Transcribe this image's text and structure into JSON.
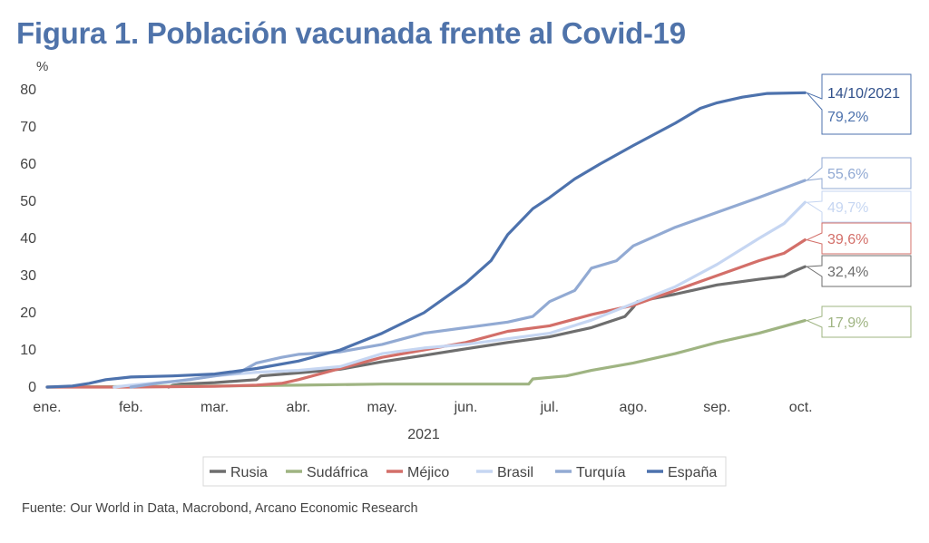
{
  "title": "Figura 1. Población vacunada frente al Covid-19",
  "source": "Fuente: Our World in Data, Macrobond, Arcano Economic Research",
  "chart_data": {
    "type": "line",
    "title": "Figura 1. Población vacunada frente al Covid-19",
    "ylabel": "%",
    "xlabel": "2021",
    "ylim": [
      0,
      80
    ],
    "yticks": [
      0,
      10,
      20,
      30,
      40,
      50,
      60,
      70,
      80
    ],
    "xlim": [
      0,
      9.3
    ],
    "xticks": [
      {
        "x": 0,
        "label": "ene."
      },
      {
        "x": 1,
        "label": "feb."
      },
      {
        "x": 2,
        "label": "mar."
      },
      {
        "x": 3,
        "label": "abr."
      },
      {
        "x": 4,
        "label": "may."
      },
      {
        "x": 5,
        "label": "jun."
      },
      {
        "x": 6,
        "label": "jul."
      },
      {
        "x": 7,
        "label": "ago."
      },
      {
        "x": 8,
        "label": "sep."
      },
      {
        "x": 9,
        "label": "oct."
      }
    ],
    "grid": false,
    "legend_position": "bottom",
    "callout_date": "14/10/2021",
    "series": [
      {
        "name": "Rusia",
        "color": "#6e6e6e",
        "end_label": "32,4%",
        "points": [
          [
            1.45,
            0.0
          ],
          [
            1.5,
            0.5
          ],
          [
            1.6,
            0.8
          ],
          [
            2.0,
            1.2
          ],
          [
            2.5,
            2.0
          ],
          [
            2.55,
            3.0
          ],
          [
            3.0,
            3.8
          ],
          [
            3.5,
            4.8
          ],
          [
            4.0,
            6.8
          ],
          [
            4.5,
            8.5
          ],
          [
            5.0,
            10.3
          ],
          [
            5.5,
            12.0
          ],
          [
            6.0,
            13.5
          ],
          [
            6.5,
            16.0
          ],
          [
            6.9,
            19.0
          ],
          [
            7.0,
            21.5
          ],
          [
            7.05,
            23.0
          ],
          [
            7.5,
            25.0
          ],
          [
            8.0,
            27.5
          ],
          [
            8.5,
            29.0
          ],
          [
            8.8,
            29.8
          ],
          [
            8.9,
            31.0
          ],
          [
            9.05,
            32.4
          ]
        ]
      },
      {
        "name": "Sudáfrica",
        "color": "#9fb482",
        "end_label": "17,9%",
        "points": [
          [
            0,
            0.0
          ],
          [
            2.0,
            0.3
          ],
          [
            3.0,
            0.5
          ],
          [
            4.0,
            0.8
          ],
          [
            5.0,
            0.8
          ],
          [
            5.75,
            0.8
          ],
          [
            5.8,
            2.2
          ],
          [
            6.2,
            3.0
          ],
          [
            6.5,
            4.5
          ],
          [
            7.0,
            6.5
          ],
          [
            7.5,
            9.0
          ],
          [
            8.0,
            12.0
          ],
          [
            8.5,
            14.5
          ],
          [
            9.05,
            17.9
          ]
        ]
      },
      {
        "name": "Méjico",
        "color": "#d36f69",
        "end_label": "39,6%",
        "points": [
          [
            0,
            0.0
          ],
          [
            1.0,
            0.0
          ],
          [
            2.0,
            0.2
          ],
          [
            2.5,
            0.5
          ],
          [
            2.8,
            1.0
          ],
          [
            3.0,
            2.0
          ],
          [
            3.5,
            5.0
          ],
          [
            4.0,
            8.0
          ],
          [
            4.5,
            10.0
          ],
          [
            5.0,
            12.0
          ],
          [
            5.5,
            15.0
          ],
          [
            6.0,
            16.5
          ],
          [
            6.5,
            19.5
          ],
          [
            7.0,
            22.0
          ],
          [
            7.5,
            26.0
          ],
          [
            8.0,
            30.0
          ],
          [
            8.5,
            34.0
          ],
          [
            8.8,
            36.0
          ],
          [
            9.05,
            39.6
          ]
        ]
      },
      {
        "name": "Brasil",
        "color": "#c6d6f2",
        "end_label": "49,7%",
        "points": [
          [
            0.8,
            0.0
          ],
          [
            1.0,
            0.5
          ],
          [
            1.5,
            1.5
          ],
          [
            2.0,
            3.0
          ],
          [
            2.5,
            4.0
          ],
          [
            3.0,
            4.5
          ],
          [
            3.5,
            5.5
          ],
          [
            4.0,
            9.0
          ],
          [
            4.5,
            10.5
          ],
          [
            5.0,
            11.5
          ],
          [
            5.5,
            13.0
          ],
          [
            6.0,
            14.5
          ],
          [
            6.5,
            18.0
          ],
          [
            7.0,
            22.5
          ],
          [
            7.5,
            27.0
          ],
          [
            8.0,
            33.0
          ],
          [
            8.5,
            40.0
          ],
          [
            8.8,
            44.0
          ],
          [
            9.05,
            49.7
          ]
        ]
      },
      {
        "name": "Turquía",
        "color": "#92aad3",
        "end_label": "55,6%",
        "points": [
          [
            1.0,
            0.0
          ],
          [
            1.3,
            1.0
          ],
          [
            1.7,
            2.0
          ],
          [
            2.0,
            3.0
          ],
          [
            2.3,
            4.0
          ],
          [
            2.5,
            6.5
          ],
          [
            2.8,
            8.0
          ],
          [
            3.0,
            8.8
          ],
          [
            3.5,
            9.5
          ],
          [
            4.0,
            11.5
          ],
          [
            4.5,
            14.5
          ],
          [
            5.0,
            16.0
          ],
          [
            5.5,
            17.5
          ],
          [
            5.8,
            19.0
          ],
          [
            6.0,
            23.0
          ],
          [
            6.3,
            26.0
          ],
          [
            6.5,
            32.0
          ],
          [
            6.8,
            34.0
          ],
          [
            7.0,
            38.0
          ],
          [
            7.3,
            41.0
          ],
          [
            7.5,
            43.0
          ],
          [
            8.0,
            47.0
          ],
          [
            8.5,
            51.0
          ],
          [
            9.05,
            55.6
          ]
        ]
      },
      {
        "name": "España",
        "color": "#4d72ad",
        "end_label": "79,2%",
        "points": [
          [
            0,
            0.0
          ],
          [
            0.3,
            0.3
          ],
          [
            0.5,
            1.0
          ],
          [
            0.7,
            2.0
          ],
          [
            1.0,
            2.7
          ],
          [
            1.5,
            3.0
          ],
          [
            2.0,
            3.5
          ],
          [
            2.5,
            5.0
          ],
          [
            3.0,
            7.0
          ],
          [
            3.5,
            10.0
          ],
          [
            4.0,
            14.5
          ],
          [
            4.5,
            20.0
          ],
          [
            5.0,
            28.0
          ],
          [
            5.3,
            34.0
          ],
          [
            5.5,
            41.0
          ],
          [
            5.8,
            48.0
          ],
          [
            6.0,
            51.0
          ],
          [
            6.3,
            56.0
          ],
          [
            6.6,
            60.0
          ],
          [
            7.0,
            65.0
          ],
          [
            7.5,
            71.0
          ],
          [
            7.8,
            75.0
          ],
          [
            8.0,
            76.5
          ],
          [
            8.3,
            78.0
          ],
          [
            8.6,
            79.0
          ],
          [
            9.05,
            79.2
          ]
        ]
      }
    ]
  }
}
